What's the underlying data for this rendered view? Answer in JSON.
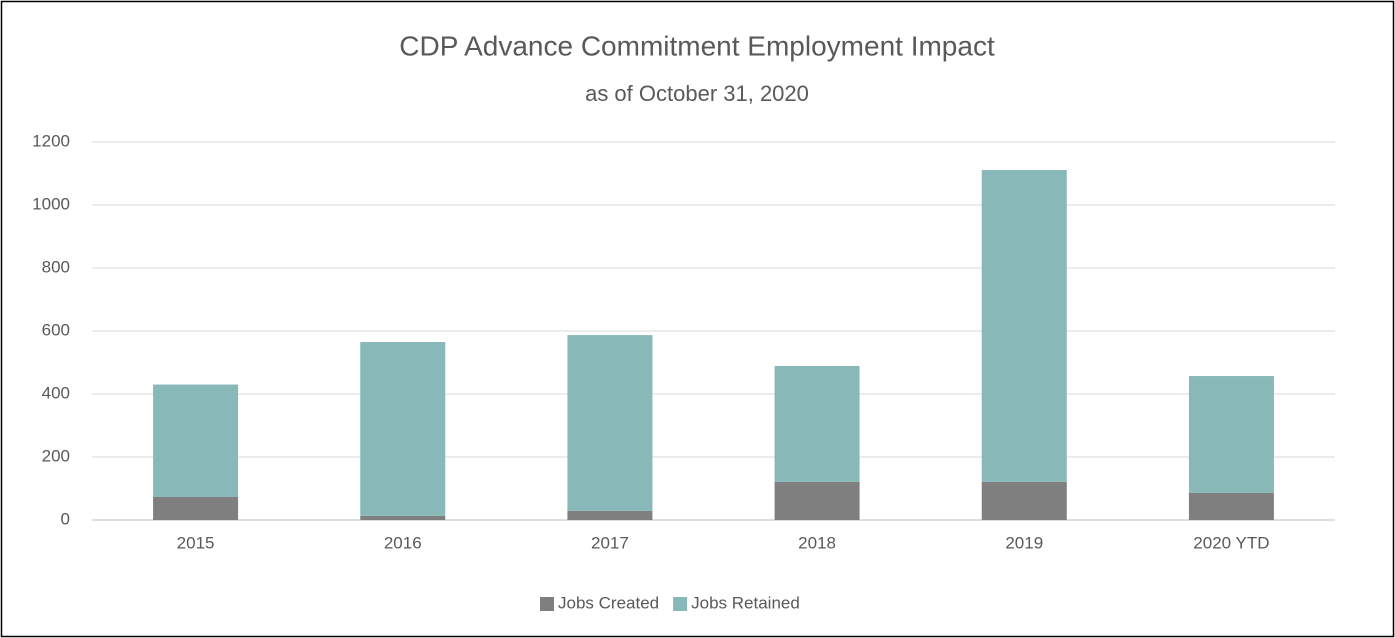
{
  "chart_data": {
    "type": "stacked_bar",
    "title": "CDP Advance Commitment Employment Impact",
    "subtitle": "as of October 31, 2020",
    "categories": [
      "2015",
      "2016",
      "2017",
      "2018",
      "2019",
      "2020 YTD"
    ],
    "series": [
      {
        "name": "Jobs Created",
        "color": "#7f7f7f",
        "values": [
          73,
          13,
          29,
          121,
          121,
          86
        ]
      },
      {
        "name": "Jobs Retained",
        "color": "#88b8b8",
        "values": [
          357,
          552,
          558,
          368,
          990,
          371
        ]
      }
    ],
    "ylim": [
      0,
      1200
    ],
    "yticks": [
      0,
      200,
      400,
      600,
      800,
      1000,
      1200
    ],
    "grid": true,
    "legend": "bottom"
  }
}
